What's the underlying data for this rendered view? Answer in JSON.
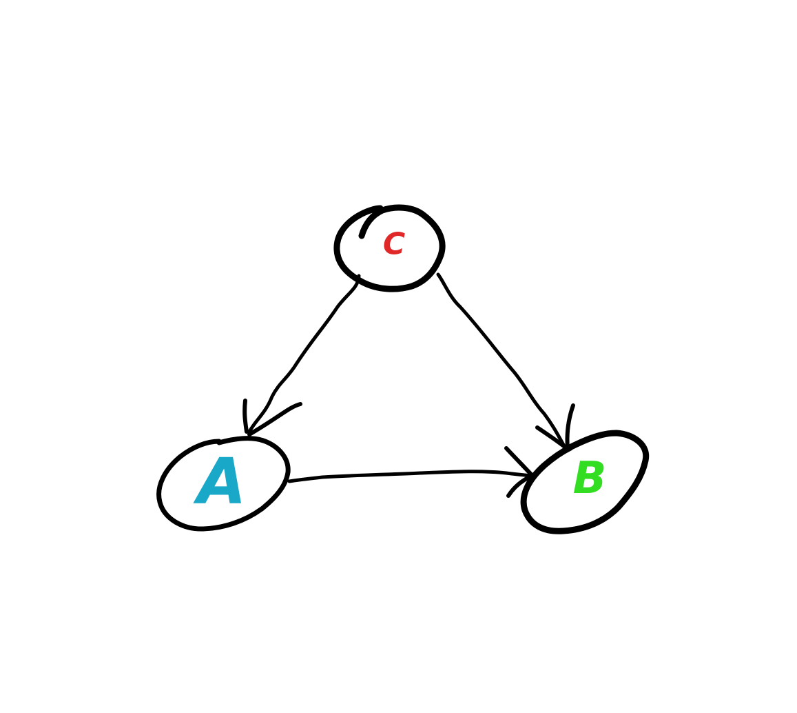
{
  "diagram": {
    "nodes": [
      {
        "id": "C",
        "label": "C",
        "color": "#e02828"
      },
      {
        "id": "A",
        "label": "A",
        "color": "#1aa8c8"
      },
      {
        "id": "B",
        "label": "B",
        "color": "#33dd22"
      }
    ],
    "edges": [
      {
        "from": "C",
        "to": "A"
      },
      {
        "from": "C",
        "to": "B"
      },
      {
        "from": "A",
        "to": "B"
      }
    ],
    "stroke_color": "#000000",
    "background": "#ffffff"
  }
}
